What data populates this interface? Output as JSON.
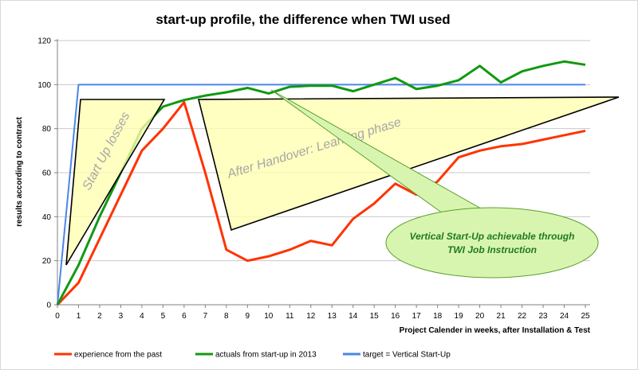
{
  "chart_data": {
    "type": "line",
    "title": "start-up profile, the difference when TWI used",
    "xlabel": "Project Calender in weeks, after Installation & Test",
    "ylabel": "results according to contract",
    "x": [
      0,
      1,
      2,
      3,
      4,
      5,
      6,
      7,
      8,
      9,
      10,
      11,
      12,
      13,
      14,
      15,
      16,
      17,
      18,
      19,
      20,
      21,
      22,
      23,
      24,
      25
    ],
    "xlim": [
      0,
      25
    ],
    "ylim": [
      0,
      120
    ],
    "yticks": [
      0,
      20,
      40,
      60,
      80,
      100,
      120
    ],
    "grid": true,
    "legend_position": "bottom",
    "series": [
      {
        "name": "experience from the past",
        "color": "#ff3300",
        "values": [
          0,
          10,
          30,
          50,
          70,
          80,
          92,
          60,
          25,
          20,
          22,
          25,
          29,
          27,
          39,
          46,
          55,
          50,
          56,
          67,
          70,
          72,
          73,
          75,
          77,
          79
        ]
      },
      {
        "name": "actuals from start-up in 2013",
        "color": "#119911",
        "values": [
          0,
          18,
          40,
          60,
          80,
          90,
          93,
          95,
          96.5,
          98.5,
          96,
          99,
          99.5,
          99.5,
          97,
          100,
          103,
          98,
          99.5,
          102,
          108.5,
          101,
          106,
          108.5,
          110.5,
          109
        ]
      },
      {
        "name": "target = Vertical Start-Up",
        "color": "#4a86e8",
        "values": [
          0,
          100,
          100,
          100,
          100,
          100,
          100,
          100,
          100,
          100,
          100,
          100,
          100,
          100,
          100,
          100,
          100,
          100,
          100,
          100,
          100,
          100,
          100,
          100,
          100,
          100
        ]
      }
    ],
    "annotations": {
      "startup_losses": "Start Up losses",
      "learning_phase": "After Handover: Learning phase",
      "callout": [
        "Vertical Start-Up achievable through",
        "TWI Job Instruction"
      ]
    }
  }
}
